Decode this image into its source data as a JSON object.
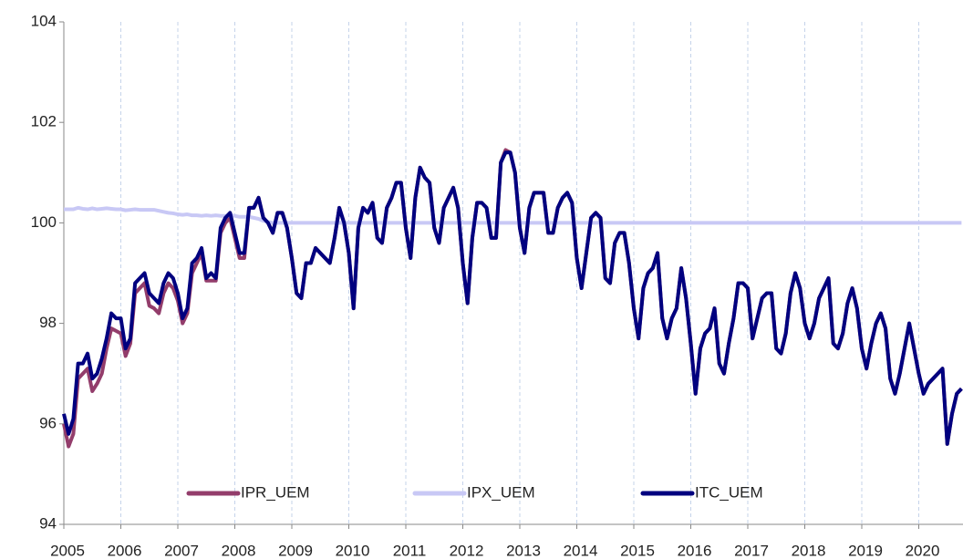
{
  "chart_data": {
    "type": "line",
    "categories": [
      "2005",
      null,
      null,
      null,
      null,
      null,
      null,
      null,
      null,
      null,
      null,
      null,
      "2006",
      null,
      null,
      null,
      null,
      null,
      null,
      null,
      null,
      null,
      null,
      null,
      "2007",
      null,
      null,
      null,
      null,
      null,
      null,
      null,
      null,
      null,
      null,
      null,
      "2008",
      null,
      null,
      null,
      null,
      null,
      null,
      null,
      null,
      null,
      null,
      null,
      "2009",
      null,
      null,
      null,
      null,
      null,
      null,
      null,
      null,
      null,
      null,
      null,
      "2010",
      null,
      null,
      null,
      null,
      null,
      null,
      null,
      null,
      null,
      null,
      null,
      "2011",
      null,
      null,
      null,
      null,
      null,
      null,
      null,
      null,
      null,
      null,
      null,
      "2012",
      null,
      null,
      null,
      null,
      null,
      null,
      null,
      null,
      null,
      null,
      null,
      "2013",
      null,
      null,
      null,
      null,
      null,
      null,
      null,
      null,
      null,
      null,
      null,
      "2014",
      null,
      null,
      null,
      null,
      null,
      null,
      null,
      null,
      null,
      null,
      null,
      "2015",
      null,
      null,
      null,
      null,
      null,
      null,
      null,
      null,
      null,
      null,
      null,
      "2016",
      null,
      null,
      null,
      null,
      null,
      null,
      null,
      null,
      null,
      null,
      null,
      "2017",
      null,
      null,
      null,
      null,
      null,
      null,
      null,
      null,
      null,
      null,
      null,
      "2018",
      null,
      null,
      null,
      null,
      null,
      null,
      null,
      null,
      null,
      null,
      null,
      "2019",
      null,
      null,
      null,
      null,
      null,
      null,
      null,
      null,
      null,
      null,
      null,
      "2020",
      null,
      null,
      null,
      null,
      null,
      null,
      null,
      null,
      null
    ],
    "series": [
      {
        "name": "IPR_UEM",
        "color": "#933d6b",
        "values": [
          96.0,
          95.55,
          95.8,
          96.9,
          97.0,
          97.1,
          96.65,
          96.8,
          97.0,
          97.5,
          97.9,
          97.85,
          97.8,
          97.35,
          97.6,
          98.6,
          98.7,
          98.8,
          98.35,
          98.3,
          98.2,
          98.6,
          98.8,
          98.7,
          98.45,
          98.0,
          98.2,
          99.0,
          99.2,
          99.4,
          98.85,
          98.85,
          98.85,
          99.8,
          100.0,
          100.1,
          99.7,
          99.3,
          99.3,
          100.3,
          100.3,
          100.5,
          100.1,
          100.0,
          99.8,
          100.2,
          100.2,
          99.9,
          99.3,
          98.6,
          98.5,
          99.2,
          99.2,
          99.5,
          99.4,
          99.3,
          99.2,
          99.7,
          100.3,
          100.0,
          99.4,
          98.3,
          99.9,
          100.3,
          100.2,
          100.4,
          99.7,
          99.6,
          100.3,
          100.5,
          100.8,
          100.8,
          99.9,
          99.3,
          100.5,
          101.1,
          100.9,
          100.8,
          99.9,
          99.6,
          100.3,
          100.5,
          100.7,
          100.3,
          99.2,
          98.4,
          99.7,
          100.4,
          100.4,
          100.3,
          99.7,
          99.7,
          101.2,
          101.45,
          101.4,
          101.0,
          99.9,
          99.4,
          100.3,
          100.6,
          100.6,
          100.6,
          99.8,
          99.8,
          100.3,
          100.5,
          100.6,
          100.4,
          99.3,
          98.7,
          99.4,
          100.1,
          100.2,
          100.1,
          98.9,
          98.8,
          99.6,
          99.8,
          99.8,
          99.2,
          98.3,
          97.7,
          98.7,
          99.0,
          99.1,
          99.4,
          98.1,
          97.7,
          98.1,
          98.3,
          99.1,
          98.5,
          97.6,
          96.6,
          97.5,
          97.8,
          97.9,
          98.3,
          97.2,
          97.0,
          97.6,
          98.1,
          98.8,
          98.8,
          98.7,
          97.7,
          98.1,
          98.5,
          98.6,
          98.6,
          97.5,
          97.4,
          97.8,
          98.6,
          99.0,
          98.7,
          98.0,
          97.7,
          98.0,
          98.5,
          98.7,
          98.9,
          97.6,
          97.5,
          97.8,
          98.4,
          98.7,
          98.3,
          97.5,
          97.1,
          97.6,
          98.0,
          98.2,
          97.9,
          96.9,
          96.6,
          97.0,
          97.5,
          98.0,
          97.5,
          97.0,
          96.6,
          96.8,
          96.9,
          97.0,
          97.1,
          95.6,
          96.2,
          96.6,
          96.7
        ]
      },
      {
        "name": "IPX_UEM",
        "color": "#c8c8f5",
        "values": [
          100.27,
          100.27,
          100.27,
          100.3,
          100.28,
          100.27,
          100.29,
          100.27,
          100.28,
          100.29,
          100.28,
          100.27,
          100.27,
          100.25,
          100.26,
          100.27,
          100.26,
          100.26,
          100.26,
          100.26,
          100.24,
          100.22,
          100.2,
          100.19,
          100.17,
          100.16,
          100.17,
          100.15,
          100.15,
          100.14,
          100.15,
          100.14,
          100.15,
          100.14,
          100.14,
          100.15,
          100.14,
          100.12,
          100.12,
          100.12,
          100.1,
          100.08,
          100.04,
          100.02,
          100.0,
          100.0,
          100.0,
          100.0,
          100,
          100,
          100,
          100,
          100,
          100,
          100,
          100,
          100,
          100,
          100,
          100,
          100,
          100,
          100,
          100,
          100,
          100,
          100,
          100,
          100,
          100,
          100,
          100,
          100,
          100,
          100,
          100,
          100,
          100,
          100,
          100,
          100,
          100,
          100,
          100,
          100,
          100,
          100,
          100,
          100,
          100,
          100,
          100,
          100,
          100,
          100,
          100,
          100,
          100,
          100,
          100,
          100,
          100,
          100,
          100,
          100,
          100,
          100,
          100,
          100,
          100,
          100,
          100,
          100,
          100,
          100,
          100,
          100,
          100,
          100,
          100,
          100,
          100,
          100,
          100,
          100,
          100,
          100,
          100,
          100,
          100,
          100,
          100,
          100,
          100,
          100,
          100,
          100,
          100,
          100,
          100,
          100,
          100,
          100,
          100,
          100,
          100,
          100,
          100,
          100,
          100,
          100,
          100,
          100,
          100,
          100,
          100,
          100,
          100,
          100,
          100,
          100,
          100,
          100,
          100,
          100,
          100,
          100,
          100,
          100,
          100,
          100,
          100,
          100,
          100,
          100,
          100,
          100,
          100,
          100,
          100,
          100,
          100,
          100,
          100,
          100,
          100,
          100,
          100,
          100,
          100
        ]
      },
      {
        "name": "ITC_UEM",
        "color": "#00007f",
        "values": [
          96.2,
          95.8,
          96.1,
          97.2,
          97.2,
          97.4,
          96.9,
          97.0,
          97.3,
          97.7,
          98.2,
          98.1,
          98.1,
          97.5,
          97.7,
          98.8,
          98.9,
          99.0,
          98.6,
          98.5,
          98.4,
          98.8,
          99.0,
          98.9,
          98.6,
          98.1,
          98.3,
          99.2,
          99.3,
          99.5,
          98.9,
          99.0,
          98.9,
          99.9,
          100.1,
          100.2,
          99.8,
          99.4,
          99.4,
          100.3,
          100.3,
          100.5,
          100.1,
          100.0,
          99.8,
          100.2,
          100.2,
          99.9,
          99.3,
          98.6,
          98.5,
          99.2,
          99.2,
          99.5,
          99.4,
          99.3,
          99.2,
          99.7,
          100.3,
          100.0,
          99.4,
          98.3,
          99.9,
          100.3,
          100.2,
          100.4,
          99.7,
          99.6,
          100.3,
          100.5,
          100.8,
          100.8,
          99.9,
          99.3,
          100.5,
          101.1,
          100.9,
          100.8,
          99.9,
          99.6,
          100.3,
          100.5,
          100.7,
          100.3,
          99.2,
          98.4,
          99.7,
          100.4,
          100.4,
          100.3,
          99.7,
          99.7,
          101.2,
          101.4,
          101.4,
          101.0,
          99.9,
          99.4,
          100.3,
          100.6,
          100.6,
          100.6,
          99.8,
          99.8,
          100.3,
          100.5,
          100.6,
          100.4,
          99.3,
          98.7,
          99.4,
          100.1,
          100.2,
          100.1,
          98.9,
          98.8,
          99.6,
          99.8,
          99.8,
          99.2,
          98.3,
          97.7,
          98.7,
          99.0,
          99.1,
          99.4,
          98.1,
          97.7,
          98.1,
          98.3,
          99.1,
          98.5,
          97.6,
          96.6,
          97.5,
          97.8,
          97.9,
          98.3,
          97.2,
          97.0,
          97.6,
          98.1,
          98.8,
          98.8,
          98.7,
          97.7,
          98.1,
          98.5,
          98.6,
          98.6,
          97.5,
          97.4,
          97.8,
          98.6,
          99.0,
          98.7,
          98.0,
          97.7,
          98.0,
          98.5,
          98.7,
          98.9,
          97.6,
          97.5,
          97.8,
          98.4,
          98.7,
          98.3,
          97.5,
          97.1,
          97.6,
          98.0,
          98.2,
          97.9,
          96.9,
          96.6,
          97.0,
          97.5,
          98.0,
          97.5,
          97.0,
          96.6,
          96.8,
          96.9,
          97.0,
          97.1,
          95.6,
          96.2,
          96.6,
          96.7
        ]
      }
    ],
    "ylim": [
      94,
      104
    ],
    "yticks": [
      94,
      96,
      98,
      100,
      102,
      104
    ],
    "grid": true,
    "legend": "bottom"
  }
}
